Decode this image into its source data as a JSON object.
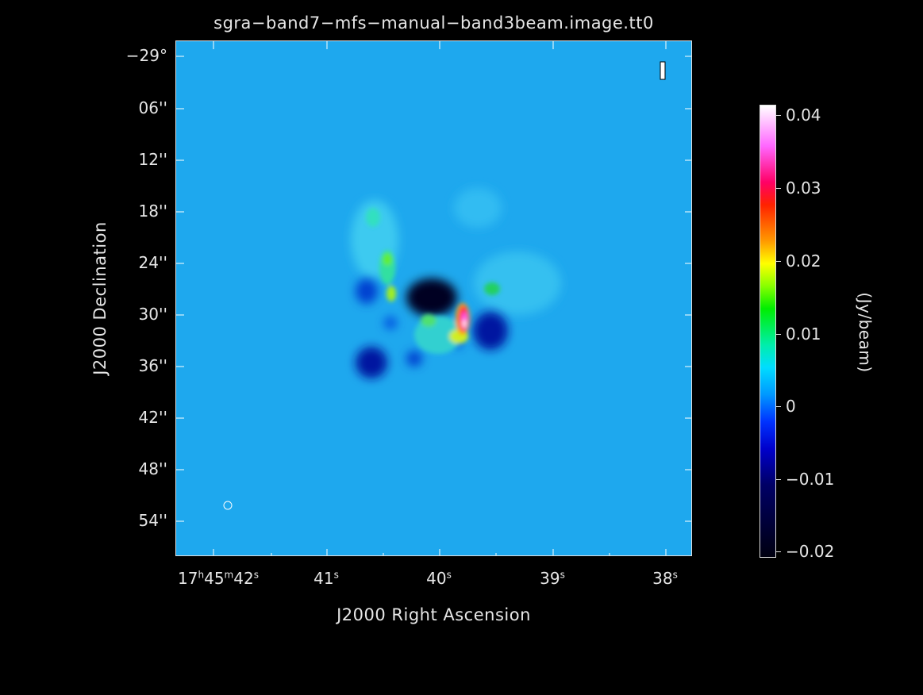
{
  "chart_data": {
    "type": "heatmap",
    "title": "sgra−band7−mfs−manual−band3beam.image.tt0",
    "xlabel": "J2000 Right Ascension",
    "ylabel": "J2000 Declination",
    "x_ticks": [
      {
        "h": "17",
        "m": "45",
        "s": "42",
        "label_kind": "full"
      },
      {
        "s": "41",
        "label_kind": "sec"
      },
      {
        "s": "40",
        "label_kind": "sec"
      },
      {
        "s": "39",
        "label_kind": "sec"
      },
      {
        "s": "38",
        "label_kind": "sec"
      }
    ],
    "y_ticks": [
      {
        "label": "−29°",
        "value": 0
      },
      {
        "label": "06''",
        "value": 6
      },
      {
        "label": "12''",
        "value": 12
      },
      {
        "label": "18''",
        "value": 18
      },
      {
        "label": "24''",
        "value": 24
      },
      {
        "label": "30''",
        "value": 30
      },
      {
        "label": "36''",
        "value": 36
      },
      {
        "label": "42''",
        "value": 42
      },
      {
        "label": "48''",
        "value": 48
      },
      {
        "label": "54''",
        "value": 54
      }
    ],
    "colorbar": {
      "label": "(Jy/beam)",
      "range": [
        -0.02,
        0.042
      ],
      "ticks": [
        "0.04",
        "0.03",
        "0.02",
        "0.01",
        "0",
        "−0.01",
        "−0.02"
      ],
      "tick_values": [
        0.04,
        0.03,
        0.02,
        0.01,
        0,
        -0.01,
        -0.02
      ]
    },
    "stokes_label": "I",
    "background_color": "#1ea8ee"
  }
}
